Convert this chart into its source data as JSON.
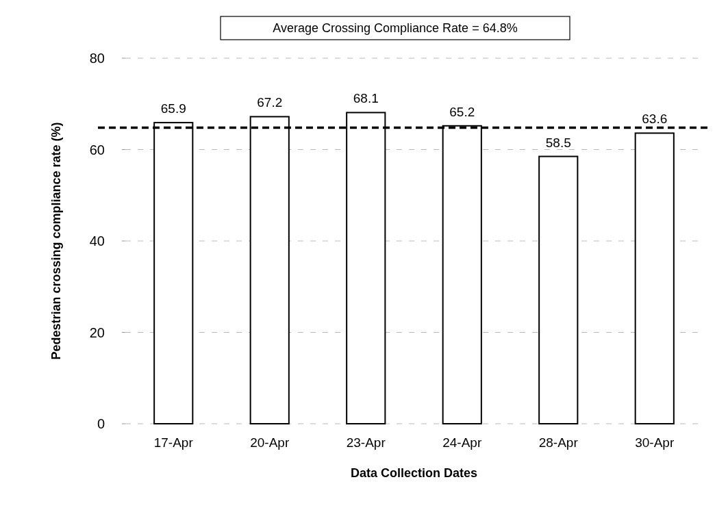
{
  "chart_data": {
    "type": "bar",
    "xlabel": "Data Collection Dates",
    "ylabel": "Pedestrian crossing compliance rate (%)",
    "categories": [
      "17-Apr",
      "20-Apr",
      "23-Apr",
      "24-Apr",
      "28-Apr",
      "30-Apr"
    ],
    "values": [
      65.9,
      67.2,
      68.1,
      65.2,
      58.5,
      63.6
    ],
    "color": "#ffffff",
    "ylim": [
      0,
      80
    ],
    "yticks": [
      0,
      20,
      40,
      60,
      80
    ],
    "grid": "y",
    "data_labels": true,
    "ref_lines": [
      {
        "axis": "y",
        "value": 64.8,
        "label": "Average Crossing Compliance Rate = 64.8%",
        "color": "#000000",
        "line_style": "dashed"
      }
    ]
  }
}
